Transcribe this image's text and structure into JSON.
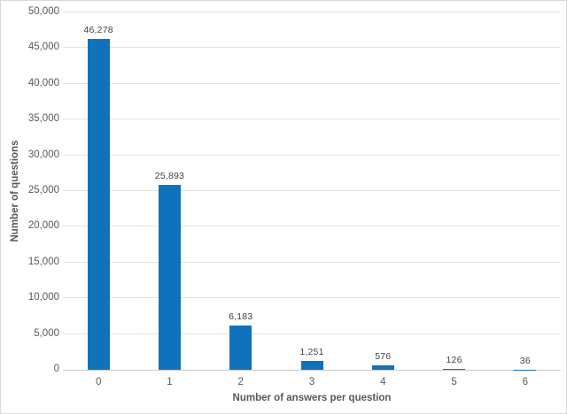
{
  "chart_data": {
    "type": "bar",
    "title": "",
    "categories": [
      "0",
      "1",
      "2",
      "3",
      "4",
      "5",
      "6"
    ],
    "values": [
      46278,
      25893,
      6183,
      1251,
      576,
      126,
      36
    ],
    "data_labels": [
      "46,278",
      "25,893",
      "6,183",
      "1,251",
      "576",
      "126",
      "36"
    ],
    "xlabel": "Number of answers per question",
    "ylabel": "Number of questions",
    "ylim": [
      0,
      50000
    ],
    "ytick_step": 5000,
    "ytick_labels": [
      "0",
      "5,000",
      "10,000",
      "15,000",
      "20,000",
      "25,000",
      "30,000",
      "35,000",
      "40,000",
      "45,000",
      "50,000"
    ],
    "grid": true,
    "legend": false,
    "legend_position": "none",
    "colors": {
      "bar": "#1072BA",
      "gridline": "#e3e3e3",
      "axis_line": "#c8c8c8",
      "tick_text": "#595959",
      "data_label_text": "#404040",
      "chart_border": "#d9d9d9",
      "background": "#ffffff"
    }
  }
}
